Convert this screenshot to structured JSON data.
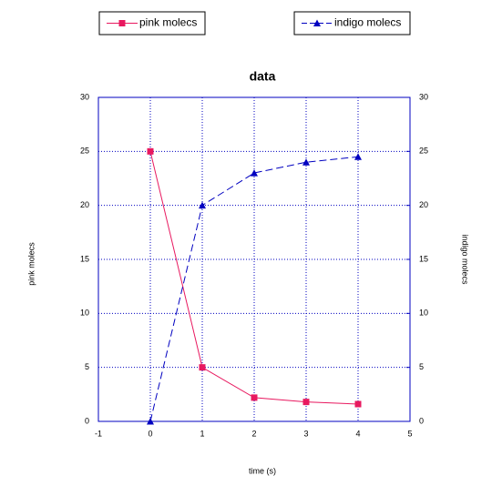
{
  "chart_data": {
    "type": "line",
    "title": "data",
    "x_label": "time (s)",
    "y_label": "pink molecs",
    "y2_label": "indigo molecs",
    "x": [
      0,
      1,
      2,
      3,
      4
    ],
    "series": [
      {
        "name": "pink molecs",
        "color": "#e8185f",
        "marker": "square",
        "line_style": "solid",
        "axis": "y",
        "values": [
          25,
          5,
          2.2,
          1.8,
          1.6
        ]
      },
      {
        "name": "indigo molecs",
        "color": "#0000c0",
        "marker": "triangle",
        "line_style": "dashed",
        "axis": "y2",
        "values": [
          0,
          20,
          23,
          24,
          24.5
        ]
      }
    ],
    "xlim": [
      -1,
      5
    ],
    "xticks": [
      -1,
      0,
      1,
      2,
      3,
      4,
      5
    ],
    "ylim": [
      0,
      30
    ],
    "yticks": [
      0,
      5,
      10,
      15,
      20,
      25,
      30
    ],
    "y2lim": [
      0,
      30
    ],
    "y2ticks": [
      0,
      5,
      10,
      15,
      20,
      25,
      30
    ],
    "grid": true,
    "grid_color": "#0000c0",
    "legend": "top"
  }
}
